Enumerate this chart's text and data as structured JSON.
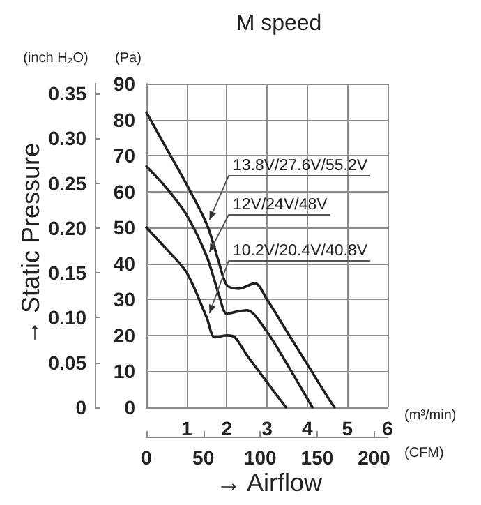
{
  "chart_data": {
    "type": "line",
    "title": "M speed",
    "xlabel": "(m³/min)",
    "ylabel": "(Pa)",
    "y2label": "(inch H₂O)",
    "x2label": "(CFM)",
    "annotations": [
      "→ Static Pressure",
      "→ Airflow"
    ],
    "xlim": [
      0,
      6
    ],
    "xticks": [
      1,
      2,
      3,
      4,
      5,
      6
    ],
    "ylim": [
      0,
      90
    ],
    "yticks": [
      0,
      10,
      20,
      30,
      40,
      50,
      60,
      70,
      80,
      90
    ],
    "y2lim": [
      0,
      0.361
    ],
    "y2ticks": [
      0,
      0.05,
      {
        "value": 0.1,
        "label": "0.10"
      },
      0.15,
      {
        "value": 0.2,
        "label": "0.20"
      },
      0.25,
      {
        "value": 0.3,
        "label": "0.30"
      },
      0.35
    ],
    "x2lim": [
      0,
      211.9
    ],
    "x2ticks": [
      0,
      50,
      100,
      150,
      200
    ],
    "grid": true,
    "marker": "none",
    "line_style": "solid",
    "series": [
      {
        "name": "13.8V/27.6V/55.2V",
        "color": "#231f20",
        "x": [
          0,
          0.5,
          1,
          1.5,
          1.8,
          2,
          2.3,
          2.7,
          3,
          3.5,
          4,
          4.5,
          4.68
        ],
        "values": [
          82,
          72,
          62,
          51,
          40.5,
          34,
          33,
          34.5,
          30,
          21,
          12,
          3,
          0
        ]
      },
      {
        "name": "12V/24V/48V",
        "color": "#231f20",
        "x": [
          0,
          0.5,
          1,
          1.5,
          1.8,
          2,
          2.2,
          2.5,
          3,
          3.5,
          4,
          4.13
        ],
        "values": [
          67,
          61,
          53.5,
          42,
          31.5,
          26,
          26.5,
          27,
          21,
          12,
          2.5,
          0
        ]
      },
      {
        "name": "10.2V/20.4V/40.8V",
        "color": "#231f20",
        "x": [
          0,
          0.5,
          1,
          1.5,
          1.7,
          2,
          2.2,
          2.5,
          3,
          3.47
        ],
        "values": [
          50,
          44,
          37.5,
          25,
          19.5,
          20,
          19.5,
          14.5,
          7,
          0
        ]
      }
    ]
  }
}
